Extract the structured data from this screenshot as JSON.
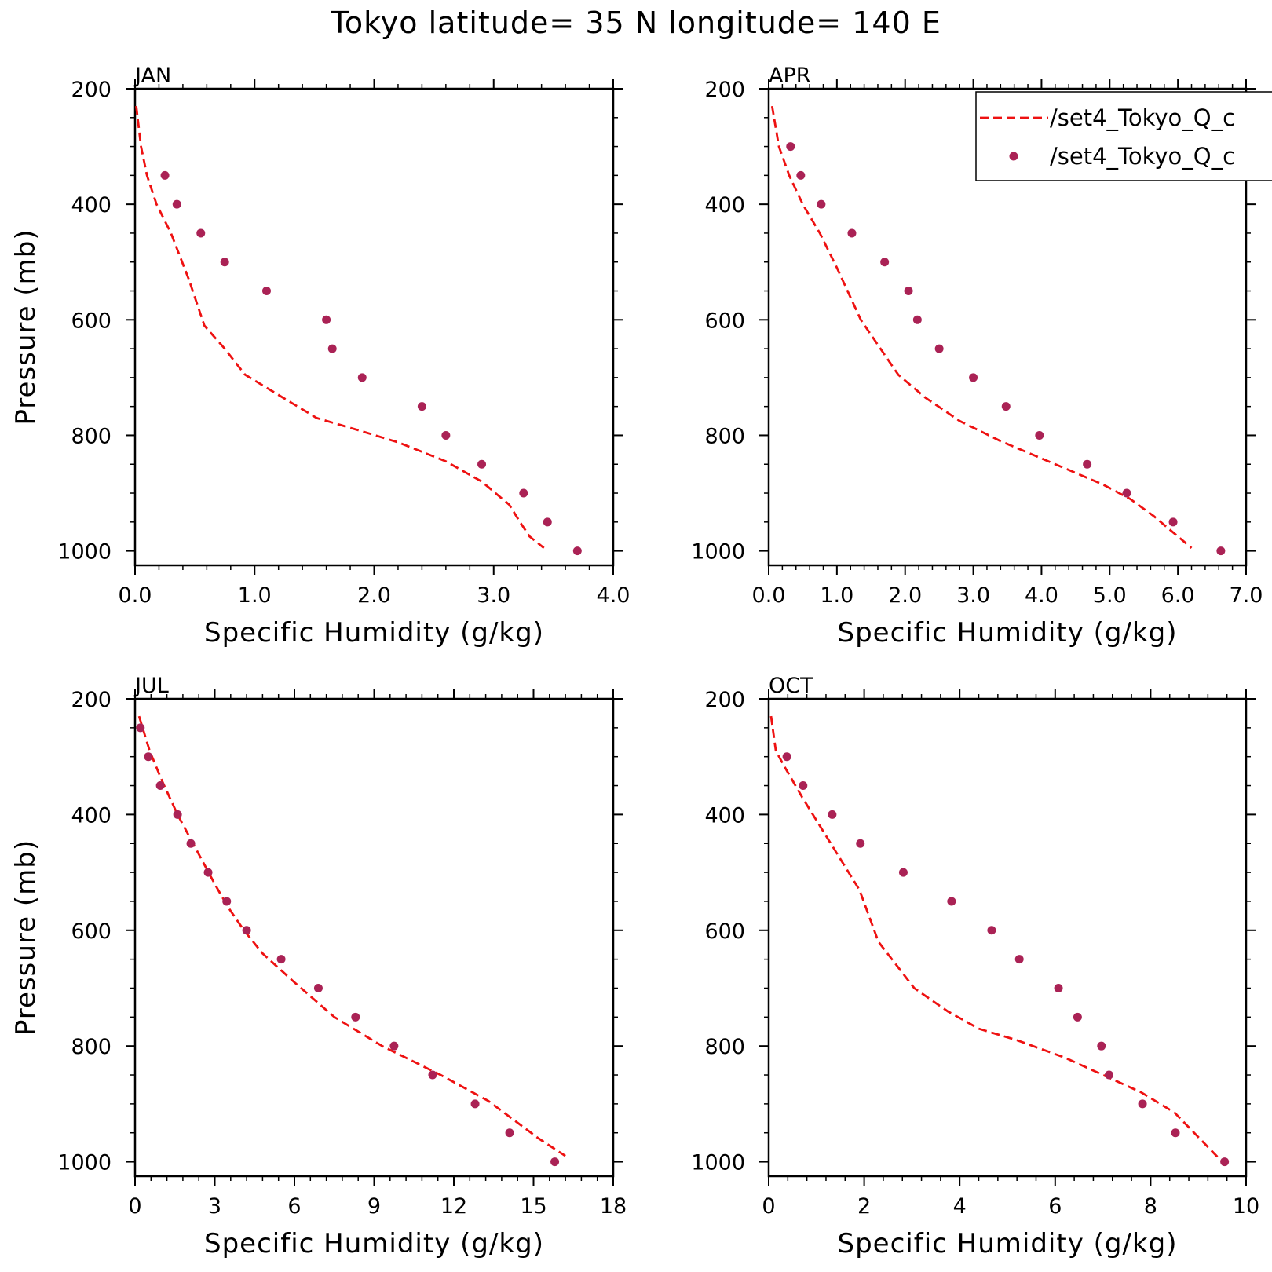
{
  "title": "Tokyo  latitude= 35 N longitude= 140 E",
  "colors": {
    "model_line": "#ee1111",
    "obs_points": "#aa2255",
    "axes": "#000000",
    "background": "#ffffff"
  },
  "legend": {
    "placement": "top-right of APR panel, clipped at figure edge",
    "entries": [
      {
        "label": "/set4_Tokyo_Q_c",
        "style": "dashed-line"
      },
      {
        "label": "/set4_Tokyo_Q_c",
        "style": "dot"
      }
    ]
  },
  "chart_data": [
    {
      "type": "line",
      "title": "JAN",
      "xlabel": "Specific Humidity (g/kg)",
      "ylabel": "Pressure (mb)",
      "xlim": [
        0,
        4
      ],
      "ylim": [
        200,
        1025
      ],
      "y_inverted": true,
      "xticks": [
        "0.0",
        "1.0",
        "2.0",
        "3.0",
        "4.0"
      ],
      "yticks": [
        "200",
        "400",
        "600",
        "800",
        "1000"
      ],
      "series": [
        {
          "style": "dashed-line",
          "x": [
            0.01,
            0.05,
            0.1,
            0.18,
            0.3,
            0.45,
            0.58,
            0.75,
            0.92,
            1.2,
            1.52,
            1.85,
            2.2,
            2.6,
            2.9,
            3.13,
            3.22,
            3.3,
            3.42
          ],
          "y": [
            230,
            300,
            350,
            400,
            450,
            530,
            610,
            650,
            695,
            730,
            770,
            790,
            812,
            845,
            880,
            920,
            950,
            975,
            995
          ]
        },
        {
          "style": "dots",
          "x": [
            0.25,
            0.35,
            0.55,
            0.75,
            1.1,
            1.6,
            1.65,
            1.9,
            2.4,
            2.6,
            2.9,
            3.25,
            3.45,
            3.7
          ],
          "y": [
            350,
            400,
            450,
            500,
            550,
            600,
            650,
            700,
            750,
            800,
            850,
            900,
            950,
            1000
          ]
        }
      ]
    },
    {
      "type": "line",
      "title": "APR",
      "xlabel": "Specific Humidity (g/kg)",
      "ylabel": "",
      "xlim": [
        0,
        7
      ],
      "ylim": [
        200,
        1025
      ],
      "y_inverted": true,
      "xticks": [
        "0.0",
        "1.0",
        "2.0",
        "3.0",
        "4.0",
        "5.0",
        "6.0",
        "7.0"
      ],
      "yticks": [
        "200",
        "400",
        "600",
        "800",
        "1000"
      ],
      "series": [
        {
          "style": "dashed-line",
          "x": [
            0.05,
            0.15,
            0.3,
            0.5,
            0.75,
            1.0,
            1.35,
            1.9,
            2.3,
            2.8,
            3.4,
            4.2,
            4.9,
            5.3,
            5.65,
            6.2
          ],
          "y": [
            230,
            300,
            350,
            400,
            450,
            510,
            600,
            695,
            735,
            775,
            810,
            850,
            885,
            910,
            940,
            995
          ]
        },
        {
          "style": "dots",
          "x": [
            0.32,
            0.47,
            0.77,
            1.22,
            1.7,
            2.05,
            2.18,
            2.5,
            3.0,
            3.48,
            3.97,
            4.67,
            5.25,
            5.93,
            6.63
          ],
          "y": [
            300,
            350,
            400,
            450,
            500,
            550,
            600,
            650,
            700,
            750,
            800,
            850,
            900,
            950,
            1000
          ]
        }
      ]
    },
    {
      "type": "line",
      "title": "JUL",
      "xlabel": "Specific Humidity (g/kg)",
      "ylabel": "Pressure (mb)",
      "xlim": [
        0,
        18
      ],
      "ylim": [
        200,
        1025
      ],
      "y_inverted": true,
      "xticks": [
        "0",
        "3",
        "6",
        "9",
        "12",
        "15",
        "18"
      ],
      "yticks": [
        "200",
        "400",
        "600",
        "800",
        "1000"
      ],
      "series": [
        {
          "style": "dashed-line",
          "x": [
            0.15,
            0.55,
            1.0,
            1.6,
            2.3,
            3.0,
            3.5,
            4.1,
            4.8,
            6.0,
            7.5,
            9.3,
            11.5,
            13.3,
            15.2,
            16.2
          ],
          "y": [
            230,
            290,
            340,
            400,
            460,
            520,
            560,
            600,
            640,
            690,
            750,
            800,
            850,
            895,
            960,
            990
          ]
        },
        {
          "style": "dots",
          "x": [
            0.2,
            0.5,
            0.95,
            1.6,
            2.1,
            2.75,
            3.45,
            4.2,
            5.5,
            6.9,
            8.3,
            9.75,
            11.2,
            12.8,
            14.1,
            15.8
          ],
          "y": [
            250,
            300,
            350,
            400,
            450,
            500,
            550,
            600,
            650,
            700,
            750,
            800,
            850,
            900,
            950,
            1000
          ]
        }
      ]
    },
    {
      "type": "line",
      "title": "OCT",
      "xlabel": "Specific Humidity (g/kg)",
      "ylabel": "",
      "xlim": [
        0,
        10
      ],
      "ylim": [
        200,
        1025
      ],
      "y_inverted": true,
      "xticks": [
        "0",
        "2",
        "4",
        "6",
        "8",
        "10"
      ],
      "yticks": [
        "200",
        "400",
        "600",
        "800",
        "1000"
      ],
      "series": [
        {
          "style": "dashed-line",
          "x": [
            0.05,
            0.15,
            0.35,
            0.7,
            1.3,
            1.9,
            2.3,
            3.05,
            3.75,
            4.4,
            5.2,
            6.2,
            7.0,
            7.8,
            8.5,
            9.5
          ],
          "y": [
            230,
            290,
            320,
            370,
            450,
            530,
            620,
            700,
            740,
            770,
            790,
            820,
            850,
            880,
            915,
            1000
          ]
        },
        {
          "style": "dots",
          "x": [
            0.38,
            0.72,
            1.33,
            1.92,
            2.82,
            3.83,
            4.67,
            5.25,
            6.07,
            6.47,
            6.97,
            7.13,
            7.83,
            8.52,
            9.55
          ],
          "y": [
            300,
            350,
            400,
            450,
            500,
            550,
            600,
            650,
            700,
            750,
            800,
            850,
            900,
            950,
            1000
          ]
        }
      ]
    }
  ]
}
